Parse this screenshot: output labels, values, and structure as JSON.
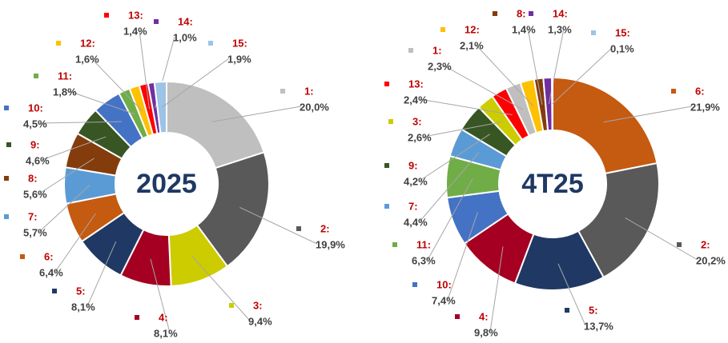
{
  "chart_data": [
    {
      "type": "pie",
      "donut": true,
      "title": "2025",
      "categories": [
        "1:",
        "2:",
        "3:",
        "4:",
        "5:",
        "6:",
        "7:",
        "8:",
        "9:",
        "10:",
        "11:",
        "12:",
        "13:",
        "14:",
        "15:"
      ],
      "values": [
        20.0,
        19.9,
        9.4,
        8.1,
        8.1,
        6.4,
        5.7,
        5.6,
        4.6,
        4.5,
        1.8,
        1.6,
        1.4,
        1.0,
        1.9
      ],
      "value_labels": [
        "20,0%",
        "19,9%",
        "9,4%",
        "8,1%",
        "8,1%",
        "6,4%",
        "5,7%",
        "5,6%",
        "4,6%",
        "4,5%",
        "1,8%",
        "1,6%",
        "1,4%",
        "1,0%",
        "1,9%"
      ],
      "colors": [
        "#bfbfbf",
        "#595959",
        "#cccc00",
        "#a50021",
        "#203864",
        "#c55a11",
        "#5b9bd5",
        "#843c0c",
        "#375623",
        "#4472c4",
        "#70ad47",
        "#ffc000",
        "#ff0000",
        "#7030a0",
        "#9dc3e6"
      ]
    },
    {
      "type": "pie",
      "donut": true,
      "title": "4T25",
      "categories": [
        "6:",
        "2:",
        "5:",
        "4:",
        "10:",
        "11:",
        "7:",
        "9:",
        "3:",
        "13:",
        "1:",
        "12:",
        "8:",
        "14:",
        "15:"
      ],
      "values": [
        21.9,
        20.2,
        13.7,
        9.8,
        7.4,
        6.3,
        4.4,
        4.2,
        2.6,
        2.4,
        2.3,
        2.1,
        1.4,
        1.3,
        0.1
      ],
      "value_labels": [
        "21,9%",
        "20,2%",
        "13,7%",
        "9,8%",
        "7,4%",
        "6,3%",
        "4,4%",
        "4,2%",
        "2,6%",
        "2,4%",
        "2,3%",
        "2,1%",
        "1,4%",
        "1,3%",
        "0,1%"
      ],
      "colors": [
        "#c55a11",
        "#595959",
        "#203864",
        "#a50021",
        "#4472c4",
        "#70ad47",
        "#5b9bd5",
        "#375623",
        "#cccc00",
        "#ff0000",
        "#bfbfbf",
        "#ffc000",
        "#843c0c",
        "#7030a0",
        "#9dc3e6"
      ]
    }
  ]
}
